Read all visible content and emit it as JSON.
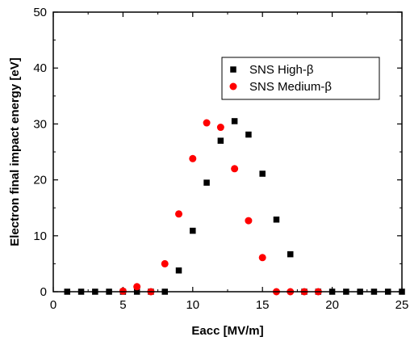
{
  "chart_data": {
    "type": "scatter",
    "title": "",
    "xlabel": "Eacc [MV/m]",
    "ylabel": "Electron final impact energy [eV]",
    "xlim": [
      0,
      25
    ],
    "ylim": [
      0,
      50
    ],
    "xticks": [
      0,
      5,
      10,
      15,
      20,
      25
    ],
    "yticks": [
      0,
      10,
      20,
      30,
      40,
      50
    ],
    "grid": false,
    "legend_position": "top-right",
    "series": [
      {
        "name": "SNS High-β",
        "marker": "square",
        "color": "#000000",
        "x": [
          1,
          2,
          3,
          4,
          5,
          6,
          7,
          8,
          9,
          10,
          11,
          12,
          13,
          14,
          15,
          16,
          17,
          18,
          19,
          20,
          21,
          22,
          23,
          24,
          25
        ],
        "y": [
          0,
          0,
          0,
          0,
          0,
          0,
          0,
          0,
          3.8,
          10.9,
          19.5,
          27.0,
          30.5,
          28.1,
          21.1,
          12.9,
          6.7,
          0,
          0,
          0,
          0,
          0,
          0,
          0,
          0
        ]
      },
      {
        "name": "SNS Medium-β",
        "marker": "circle",
        "color": "#ff0000",
        "x": [
          5,
          6,
          7,
          8,
          9,
          10,
          11,
          12,
          13,
          14,
          15,
          16,
          17,
          18,
          19
        ],
        "y": [
          0.1,
          0.9,
          0,
          5.0,
          13.9,
          23.8,
          30.2,
          29.4,
          22.0,
          12.7,
          6.1,
          0,
          0,
          0,
          0
        ]
      }
    ]
  }
}
